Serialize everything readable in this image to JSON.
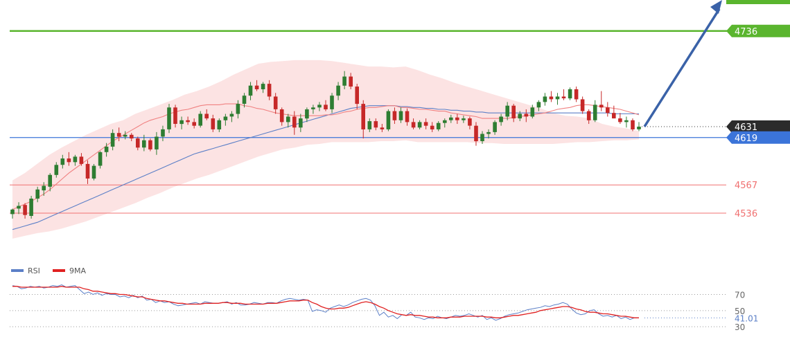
{
  "chart_data": [
    {
      "type": "candlestick",
      "description": "Price chart with Bollinger bands, 20-period MA, 50-period MA, horizontal support/resistance levels and a projected upward arrow",
      "colors": {
        "up": "#2e7d32",
        "down": "#c62828",
        "band_fill": "#fbdada",
        "ma_short": "#f08080",
        "ma_long": "#5b7fc7",
        "target_line": "#5ab52e",
        "pivot_line": "#3b74d9",
        "support_line": "#f07070",
        "arrow": "#3a62a8"
      },
      "ylim": [
        4495,
        4770
      ],
      "levels": [
        {
          "name": "target",
          "value": 4736,
          "label": "4736",
          "style": "green-solid"
        },
        {
          "name": "last-price",
          "value": 4631,
          "label": "4631",
          "style": "black-dotted"
        },
        {
          "name": "pivot",
          "value": 4619,
          "label": "4619",
          "style": "blue-solid"
        },
        {
          "name": "support-1",
          "value": 4567,
          "label": "4567",
          "style": "red-thin"
        },
        {
          "name": "support-2",
          "value": 4536,
          "label": "4536",
          "style": "red-thin"
        }
      ],
      "candles": [
        [
          4535,
          4541,
          4530,
          4540
        ],
        [
          4541,
          4548,
          4535,
          4544
        ],
        [
          4545,
          4547,
          4530,
          4534
        ],
        [
          4533,
          4555,
          4530,
          4552
        ],
        [
          4552,
          4565,
          4548,
          4562
        ],
        [
          4561,
          4570,
          4555,
          4566
        ],
        [
          4565,
          4580,
          4560,
          4578
        ],
        [
          4578,
          4592,
          4575,
          4589
        ],
        [
          4589,
          4600,
          4585,
          4596
        ],
        [
          4596,
          4603,
          4588,
          4592
        ],
        [
          4592,
          4600,
          4588,
          4598
        ],
        [
          4598,
          4602,
          4588,
          4590
        ],
        [
          4590,
          4594,
          4568,
          4574
        ],
        [
          4574,
          4590,
          4572,
          4588
        ],
        [
          4588,
          4604,
          4585,
          4603
        ],
        [
          4603,
          4613,
          4598,
          4609
        ],
        [
          4609,
          4628,
          4605,
          4624
        ],
        [
          4624,
          4630,
          4615,
          4620
        ],
        [
          4620,
          4626,
          4617,
          4622
        ],
        [
          4622,
          4624,
          4615,
          4618
        ],
        [
          4618,
          4620,
          4605,
          4608
        ],
        [
          4608,
          4622,
          4604,
          4616
        ],
        [
          4616,
          4618,
          4604,
          4606
        ],
        [
          4606,
          4625,
          4600,
          4620
        ],
        [
          4620,
          4632,
          4615,
          4628
        ],
        [
          4628,
          4656,
          4624,
          4652
        ],
        [
          4652,
          4655,
          4630,
          4634
        ],
        [
          4634,
          4642,
          4628,
          4638
        ],
        [
          4638,
          4642,
          4633,
          4636
        ],
        [
          4636,
          4640,
          4629,
          4632
        ],
        [
          4632,
          4648,
          4630,
          4645
        ],
        [
          4645,
          4650,
          4638,
          4640
        ],
        [
          4640,
          4644,
          4625,
          4628
        ],
        [
          4628,
          4640,
          4625,
          4638
        ],
        [
          4638,
          4645,
          4632,
          4642
        ],
        [
          4642,
          4648,
          4636,
          4645
        ],
        [
          4645,
          4660,
          4640,
          4656
        ],
        [
          4656,
          4668,
          4652,
          4665
        ],
        [
          4665,
          4680,
          4660,
          4676
        ],
        [
          4676,
          4682,
          4670,
          4672
        ],
        [
          4672,
          4680,
          4668,
          4678
        ],
        [
          4678,
          4682,
          4660,
          4664
        ],
        [
          4664,
          4668,
          4645,
          4650
        ],
        [
          4650,
          4652,
          4632,
          4636
        ],
        [
          4636,
          4645,
          4630,
          4642
        ],
        [
          4642,
          4648,
          4622,
          4630
        ],
        [
          4630,
          4645,
          4625,
          4640
        ],
        [
          4640,
          4652,
          4636,
          4650
        ],
        [
          4650,
          4655,
          4645,
          4652
        ],
        [
          4652,
          4658,
          4648,
          4655
        ],
        [
          4655,
          4660,
          4648,
          4650
        ],
        [
          4650,
          4668,
          4646,
          4665
        ],
        [
          4665,
          4680,
          4660,
          4676
        ],
        [
          4676,
          4692,
          4672,
          4686
        ],
        [
          4686,
          4690,
          4672,
          4675
        ],
        [
          4675,
          4678,
          4650,
          4656
        ],
        [
          4656,
          4660,
          4618,
          4628
        ],
        [
          4628,
          4640,
          4625,
          4637
        ],
        [
          4637,
          4640,
          4627,
          4630
        ],
        [
          4630,
          4634,
          4625,
          4628
        ],
        [
          4628,
          4650,
          4626,
          4648
        ],
        [
          4648,
          4652,
          4634,
          4638
        ],
        [
          4638,
          4652,
          4635,
          4648
        ],
        [
          4648,
          4651,
          4632,
          4636
        ],
        [
          4636,
          4640,
          4628,
          4630
        ],
        [
          4630,
          4638,
          4628,
          4636
        ],
        [
          4636,
          4640,
          4628,
          4632
        ],
        [
          4632,
          4636,
          4625,
          4628
        ],
        [
          4628,
          4637,
          4626,
          4635
        ],
        [
          4635,
          4640,
          4630,
          4638
        ],
        [
          4638,
          4644,
          4635,
          4641
        ],
        [
          4641,
          4645,
          4634,
          4638
        ],
        [
          4638,
          4643,
          4635,
          4640
        ],
        [
          4640,
          4642,
          4628,
          4632
        ],
        [
          4632,
          4636,
          4610,
          4615
        ],
        [
          4615,
          4626,
          4612,
          4623
        ],
        [
          4623,
          4628,
          4618,
          4625
        ],
        [
          4625,
          4638,
          4622,
          4636
        ],
        [
          4636,
          4645,
          4632,
          4642
        ],
        [
          4642,
          4658,
          4638,
          4654
        ],
        [
          4654,
          4656,
          4636,
          4640
        ],
        [
          4640,
          4648,
          4637,
          4645
        ],
        [
          4645,
          4650,
          4636,
          4642
        ],
        [
          4642,
          4655,
          4640,
          4652
        ],
        [
          4652,
          4660,
          4648,
          4658
        ],
        [
          4658,
          4668,
          4654,
          4664
        ],
        [
          4664,
          4670,
          4658,
          4661
        ],
        [
          4661,
          4668,
          4655,
          4664
        ],
        [
          4664,
          4672,
          4660,
          4662
        ],
        [
          4662,
          4674,
          4660,
          4672
        ],
        [
          4672,
          4675,
          4658,
          4661
        ],
        [
          4661,
          4664,
          4645,
          4648
        ],
        [
          4648,
          4650,
          4634,
          4638
        ],
        [
          4638,
          4660,
          4636,
          4655
        ],
        [
          4655,
          4670,
          4648,
          4652
        ],
        [
          4652,
          4658,
          4642,
          4646
        ],
        [
          4646,
          4654,
          4640,
          4640
        ],
        [
          4640,
          4646,
          4634,
          4636
        ],
        [
          4636,
          4642,
          4630,
          4638
        ],
        [
          4638,
          4640,
          4626,
          4628
        ],
        [
          4628,
          4636,
          4626,
          4631
        ]
      ],
      "bollinger_upper": [
        4572,
        4580,
        4590,
        4600,
        4608,
        4615,
        4622,
        4628,
        4634,
        4638,
        4645,
        4650,
        4655,
        4660,
        4666,
        4670,
        4675,
        4681,
        4688,
        4694,
        4700,
        4702,
        4703,
        4704,
        4704,
        4704,
        4703,
        4701,
        4699,
        4697,
        4697,
        4696,
        4697,
        4693,
        4688,
        4684,
        4679,
        4675,
        4671,
        4667,
        4663,
        4659,
        4655,
        4651,
        4646,
        4643,
        4642,
        4640,
        4634,
        4631,
        4629,
        4626
      ],
      "bollinger_lower": [
        4508,
        4511,
        4514,
        4516,
        4519,
        4523,
        4527,
        4532,
        4537,
        4542,
        4547,
        4553,
        4558,
        4564,
        4569,
        4574,
        4578,
        4583,
        4588,
        4593,
        4598,
        4602,
        4606,
        4608,
        4611,
        4612,
        4614,
        4614,
        4614,
        4614,
        4615,
        4615,
        4616,
        4614,
        4614,
        4614,
        4614,
        4614,
        4613,
        4613,
        4612,
        4612,
        4612,
        4612,
        4612,
        4613,
        4614,
        4614,
        4615,
        4616,
        4616,
        4617
      ],
      "ma_short": [
        4540,
        4543,
        4546,
        4549,
        4553,
        4557,
        4562,
        4568,
        4574,
        4580,
        4585,
        4590,
        4595,
        4600,
        4605,
        4610,
        4615,
        4619,
        4623,
        4627,
        4631,
        4635,
        4638,
        4640,
        4642,
        4645,
        4647,
        4649,
        4650,
        4652,
        4654,
        4655,
        4655,
        4655,
        4656,
        4656,
        4656,
        4654,
        4653,
        4651,
        4650,
        4648,
        4646,
        4645,
        4644,
        4643,
        4643,
        4643,
        4643,
        4643,
        4644,
        4644,
        4645,
        4647,
        4648,
        4650,
        4651,
        4652,
        4652,
        4653,
        4654,
        4654,
        4652,
        4652,
        4651,
        4650,
        4650,
        4649,
        4648,
        4648,
        4646,
        4645,
        4644,
        4643,
        4642,
        4640,
        4640,
        4640,
        4640,
        4640,
        4641,
        4642,
        4643,
        4644,
        4645,
        4646,
        4648,
        4650,
        4651,
        4652,
        4654,
        4655,
        4655,
        4654,
        4653,
        4652,
        4651,
        4650,
        4648,
        4646,
        4644
      ],
      "ma_long": [
        4518,
        4520,
        4522,
        4524,
        4526,
        4529,
        4532,
        4535,
        4538,
        4541,
        4544,
        4547,
        4550,
        4553,
        4556,
        4559,
        4562,
        4565,
        4568,
        4571,
        4574,
        4577,
        4580,
        4583,
        4586,
        4589,
        4592,
        4595,
        4598,
        4601,
        4603,
        4605,
        4607,
        4609,
        4611,
        4613,
        4615,
        4617,
        4619,
        4621,
        4623,
        4625,
        4627,
        4629,
        4631,
        4633,
        4635,
        4637,
        4639,
        4641,
        4643,
        4645,
        4647,
        4649,
        4651,
        4652,
        4653,
        4654,
        4654,
        4654,
        4654,
        4654,
        4653,
        4653,
        4652,
        4652,
        4651,
        4651,
        4650,
        4650,
        4649,
        4649,
        4648,
        4648,
        4647,
        4647,
        4646,
        4646,
        4646,
        4646,
        4646,
        4646,
        4646,
        4646,
        4646,
        4646,
        4646,
        4646,
        4646,
        4646,
        4646,
        4646,
        4646,
        4646,
        4646,
        4646,
        4645,
        4645,
        4645,
        4645,
        4645
      ],
      "arrow": {
        "from_value": 4631,
        "to_value": 4770
      }
    },
    {
      "type": "line",
      "panel": "oscillator",
      "legend": [
        {
          "name": "RSI",
          "color": "#5b7fc7"
        },
        {
          "name": "9MA",
          "color": "#e02020"
        }
      ],
      "ylim": [
        25,
        85
      ],
      "ticks": [
        70,
        50,
        30
      ],
      "last_value_label": "41.01",
      "series": [
        {
          "name": "RSI",
          "values": [
            81,
            80,
            77,
            78,
            80,
            79,
            80,
            78,
            79,
            81,
            80,
            82,
            79,
            80,
            81,
            76,
            71,
            73,
            70,
            72,
            69,
            71,
            70,
            70,
            67,
            68,
            66,
            69,
            66,
            68,
            63,
            64,
            60,
            62,
            60,
            61,
            58,
            56,
            57,
            58,
            59,
            60,
            58,
            61,
            60,
            59,
            59,
            60,
            61,
            58,
            60,
            57,
            57,
            58,
            60,
            59,
            58,
            60,
            60,
            59,
            62,
            64,
            65,
            64,
            63,
            64,
            63,
            49,
            51,
            50,
            48,
            53,
            55,
            57,
            55,
            57,
            60,
            62,
            64,
            65,
            63,
            56,
            44,
            48,
            42,
            44,
            40,
            45,
            44,
            48,
            42,
            41,
            39,
            41,
            40,
            43,
            41,
            40,
            42,
            44,
            43,
            44,
            46,
            44,
            42,
            44,
            39,
            41,
            38,
            40,
            43,
            45,
            46,
            47,
            49,
            51,
            52,
            53,
            54,
            56,
            55,
            57,
            58,
            60,
            58,
            52,
            47,
            45,
            46,
            50,
            51,
            46,
            43,
            44,
            42,
            44,
            40,
            42,
            39,
            41,
            41
          ]
        },
        {
          "name": "9MA",
          "values": [
            80,
            80,
            79,
            79,
            79,
            79,
            79,
            79,
            79,
            79,
            79,
            80,
            79,
            79,
            79,
            79,
            77,
            76,
            74,
            74,
            73,
            72,
            71,
            71,
            70,
            70,
            69,
            68,
            67,
            67,
            65,
            64,
            63,
            62,
            62,
            61,
            60,
            59,
            59,
            58,
            58,
            58,
            58,
            59,
            59,
            59,
            59,
            60,
            60,
            59,
            59,
            59,
            58,
            58,
            58,
            58,
            58,
            59,
            59,
            59,
            60,
            61,
            62,
            62,
            62,
            63,
            63,
            60,
            58,
            55,
            53,
            52,
            52,
            53,
            53,
            54,
            56,
            58,
            60,
            61,
            60,
            58,
            55,
            53,
            50,
            48,
            46,
            45,
            44,
            45,
            44,
            44,
            43,
            42,
            42,
            41,
            41,
            41,
            42,
            42,
            42,
            43,
            43,
            43,
            43,
            43,
            42,
            42,
            41,
            41,
            42,
            43,
            44,
            44,
            45,
            46,
            47,
            48,
            50,
            51,
            52,
            53,
            54,
            55,
            55,
            54,
            52,
            51,
            49,
            48,
            48,
            47,
            46,
            46,
            45,
            44,
            43,
            43,
            42,
            41,
            41
          ]
        }
      ]
    }
  ]
}
